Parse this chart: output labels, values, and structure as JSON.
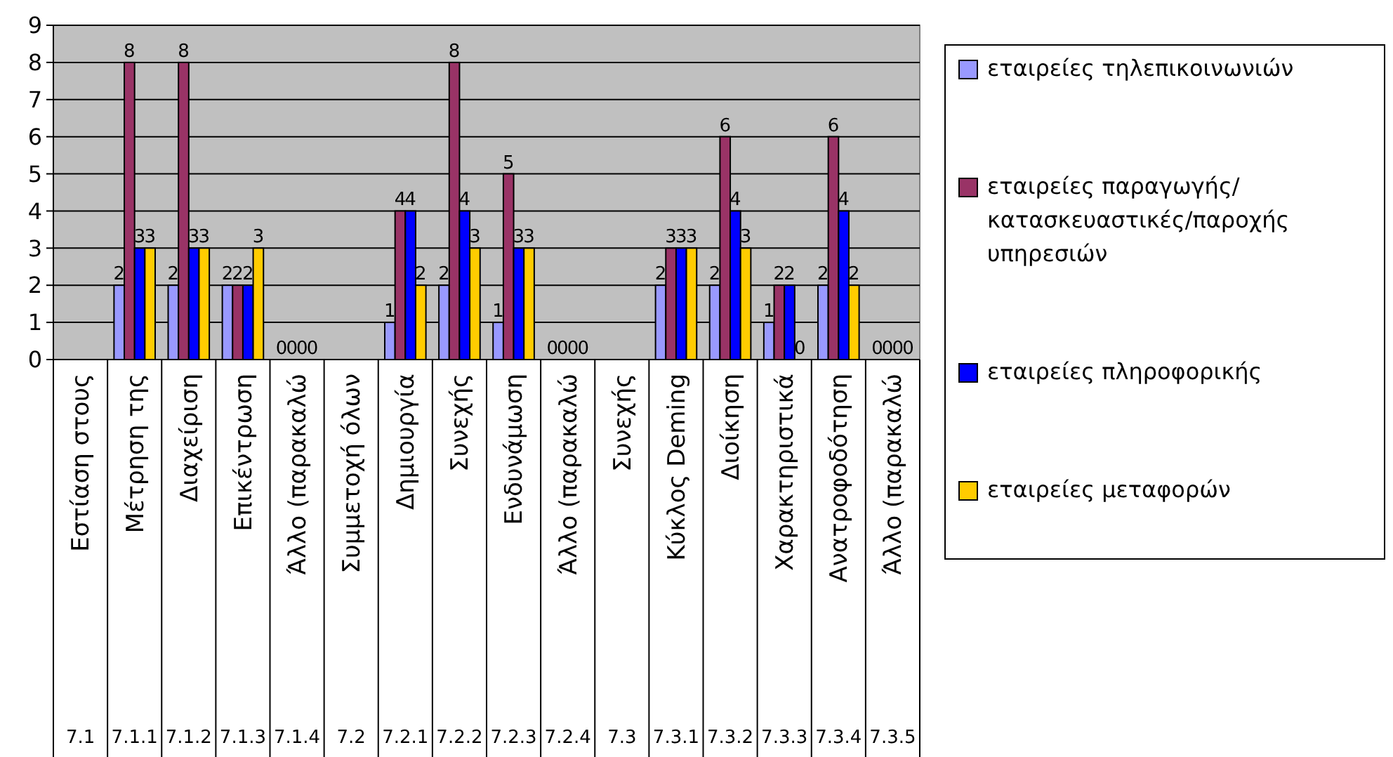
{
  "chart_data": {
    "type": "bar",
    "categories": [
      "Εστίαση στους\n7.1",
      "Μέτρηση της\n7.1.1",
      "Διαχείριση\n7.1.2",
      "Επικέντρωση\n7.1.3",
      "Άλλο (παρακαλώ\n7.1.4",
      "Συμμετοχή όλων\n7.2",
      "Δημιουργία\n7.2.1",
      "Συνεχής\n7.2.2",
      "Ενδυνάμωση\n7.2.3",
      "Άλλο (παρακαλώ\n7.2.4",
      "Συνεχής\n7.3",
      "Κύκλος Deming\n7.3.1",
      "Διοίκηση\n7.3.2",
      "Χαρακτηριστικά\n7.3.3",
      "Ανατροφοδότηση\n7.3.4",
      "Άλλο (παρακαλώ\n7.3.5"
    ],
    "series": [
      {
        "name": "εταιρείες τηλεπικοινωνιών",
        "color": "#9999ff",
        "values": [
          null,
          2,
          2,
          2,
          0,
          null,
          1,
          2,
          1,
          0,
          null,
          2,
          2,
          1,
          2,
          0
        ]
      },
      {
        "name": "εταιρείες παραγωγής/κατασκευαστικές/παροχής υπηρεσιών",
        "color": "#993366",
        "values": [
          null,
          8,
          8,
          2,
          0,
          null,
          4,
          8,
          5,
          0,
          null,
          3,
          6,
          2,
          6,
          0
        ]
      },
      {
        "name": "εταιρείες πληροφορικής",
        "color": "#0000ff",
        "values": [
          null,
          3,
          3,
          2,
          0,
          null,
          4,
          4,
          3,
          0,
          null,
          3,
          4,
          2,
          4,
          0
        ]
      },
      {
        "name": "εταιρείες μεταφορών",
        "color": "#ffcc00",
        "values": [
          null,
          3,
          3,
          3,
          0,
          null,
          2,
          3,
          3,
          0,
          null,
          3,
          3,
          0,
          2,
          0
        ]
      }
    ],
    "ylim": [
      0,
      9
    ],
    "yticks": [
      0,
      1,
      2,
      3,
      4,
      5,
      6,
      7,
      8,
      9
    ],
    "grid": "y",
    "legend": "right",
    "data_labels": true
  }
}
